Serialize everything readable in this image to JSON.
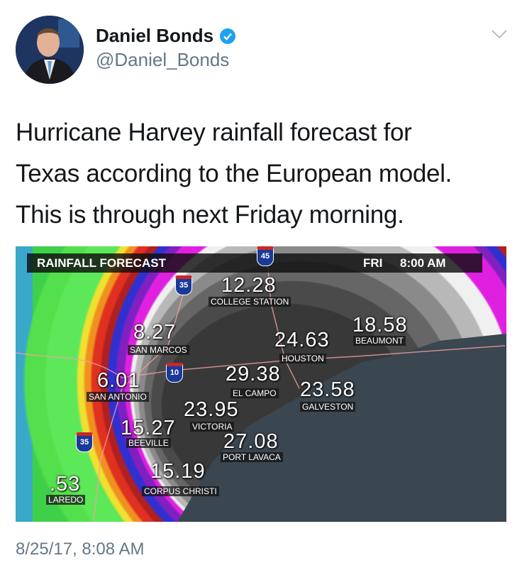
{
  "author": {
    "name": "Daniel Bonds",
    "handle": "@Daniel_Bonds",
    "verified": true
  },
  "tweet": {
    "lines": [
      "Hurricane Harvey rainfall forecast for",
      "Texas according to the European model.",
      "This is through next Friday morning."
    ]
  },
  "map": {
    "title": "RAINFALL FORECAST",
    "day": "FRI",
    "time": "8:00 AM",
    "highways": [
      "35",
      "10",
      "35",
      "45"
    ],
    "cities": [
      {
        "value": "12.28",
        "name": "COLLEGE STATION"
      },
      {
        "value": "8.27",
        "name": "SAN MARCOS"
      },
      {
        "value": "24.63",
        "name": "HOUSTON"
      },
      {
        "value": "18.58",
        "name": "BEAUMONT"
      },
      {
        "value": "29.38",
        "name": "EL CAMPO"
      },
      {
        "value": "6.01",
        "name": "SAN ANTONIO"
      },
      {
        "value": "23.58",
        "name": "GALVESTON"
      },
      {
        "value": "23.95",
        "name": "VICTORIA"
      },
      {
        "value": "15.27",
        "name": "BEEVILLE"
      },
      {
        "value": "27.08",
        "name": "PORT LAVACA"
      },
      {
        "value": ".53",
        "name": "LAREDO"
      },
      {
        "value": "15.19",
        "name": "CORPUS CHRISTI"
      }
    ]
  },
  "timestamp": "8/25/17, 8:08 AM",
  "colors": {
    "verified": "#1da1f2",
    "handle": "#657786",
    "ocean": "#3a4650"
  }
}
